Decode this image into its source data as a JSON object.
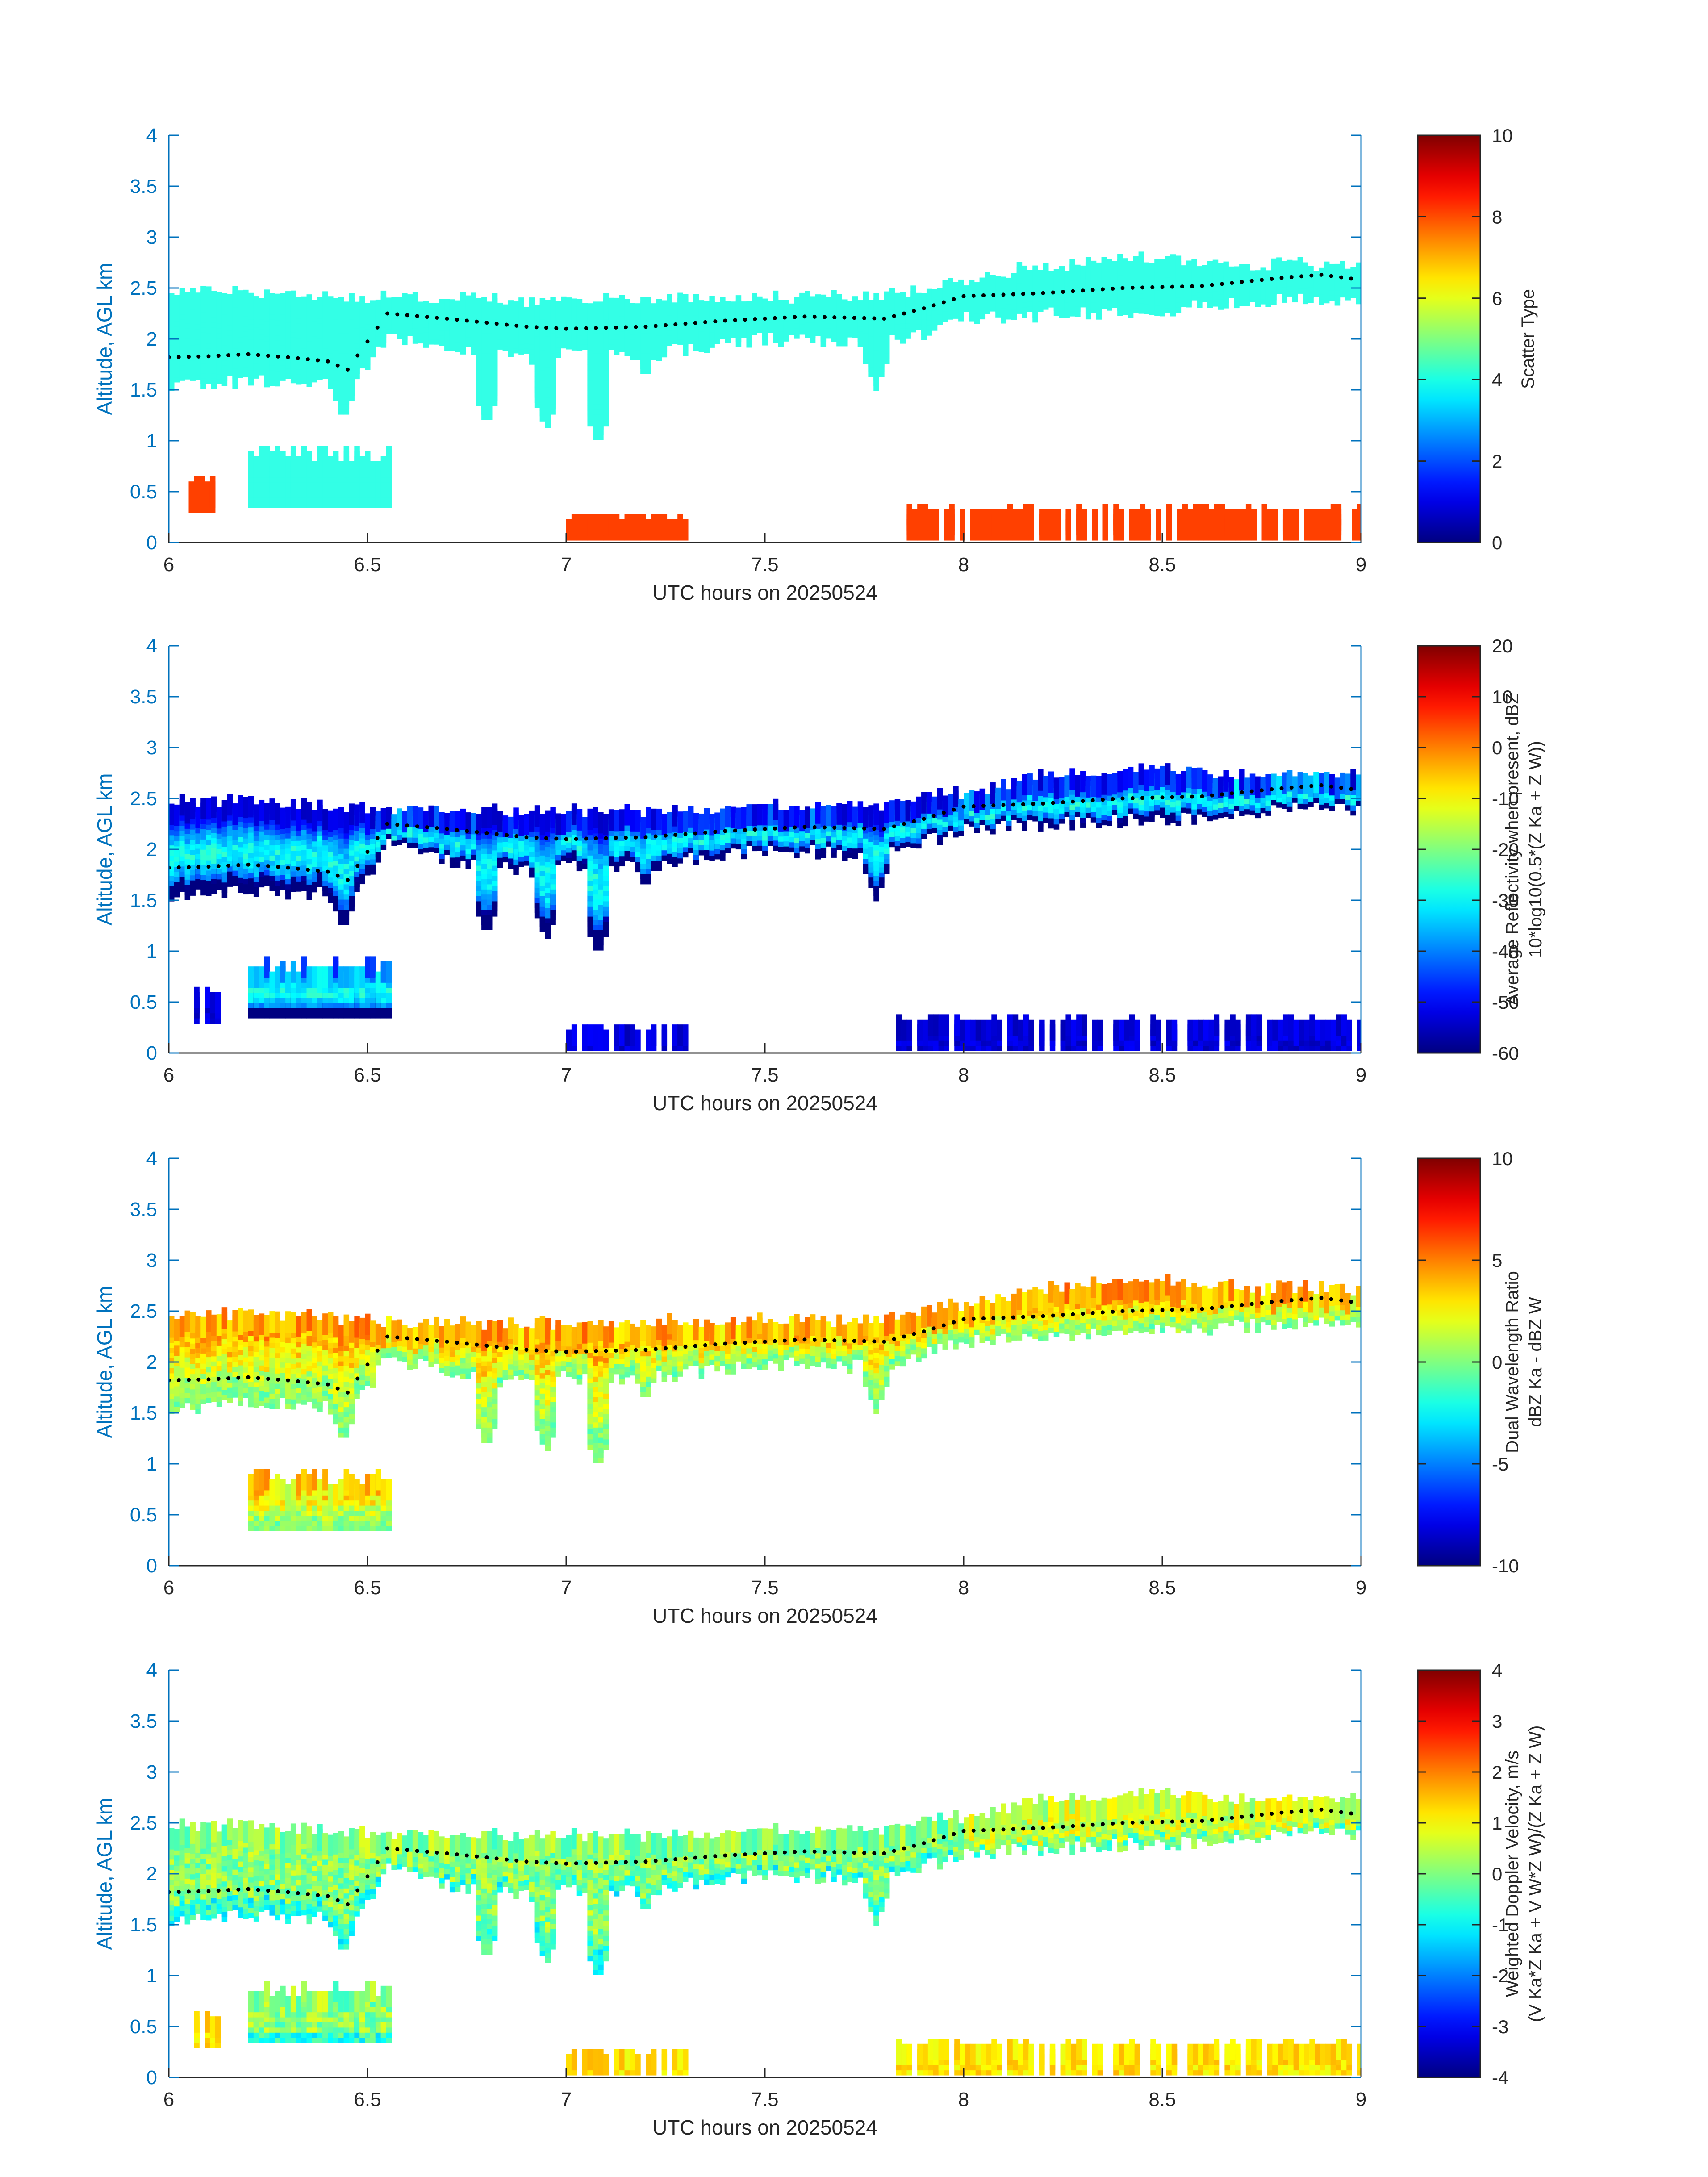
{
  "figure": {
    "background": "#ffffff",
    "axis_color": "#0072BD",
    "dot_color": "#000000"
  },
  "chart_data": [
    {
      "type": "heatmap",
      "panel": "scatter-type",
      "xlabel": "UTC hours on 20250524",
      "ylabel": "Altitude, AGL km",
      "xlim": [
        6,
        9
      ],
      "ylim": [
        0,
        4
      ],
      "xticks": [
        6,
        6.5,
        7,
        7.5,
        8,
        8.5,
        9
      ],
      "xtick_labels": [
        "6",
        "6.5",
        "7",
        "7.5",
        "8",
        "8.5",
        "9"
      ],
      "yticks": [
        0,
        0.5,
        1,
        1.5,
        2,
        2.5,
        3,
        3.5,
        4
      ],
      "ytick_labels": [
        "0",
        "0.5",
        "1",
        "1.5",
        "2",
        "2.5",
        "3",
        "3.5",
        "4"
      ],
      "colorbar": {
        "label_lines": [
          "Scatter Type"
        ],
        "range": [
          0,
          10
        ],
        "ticks": [
          0,
          2,
          4,
          6,
          8,
          10
        ],
        "tick_labels": [
          "0",
          "2",
          "4",
          "6",
          "8",
          "10"
        ],
        "colormap": "jet"
      },
      "cloud_color": "#33FFE6",
      "rain_color": "#FF4000",
      "cloud_layer": {
        "top_km": [
          [
            6.0,
            2.45
          ],
          [
            6.2,
            2.45
          ],
          [
            6.35,
            2.42
          ],
          [
            6.5,
            2.38
          ],
          [
            7.0,
            2.35
          ],
          [
            7.5,
            2.4
          ],
          [
            7.8,
            2.4
          ],
          [
            8.0,
            2.55
          ],
          [
            8.2,
            2.7
          ],
          [
            8.5,
            2.78
          ],
          [
            8.7,
            2.7
          ],
          [
            8.85,
            2.72
          ],
          [
            9.0,
            2.68
          ]
        ],
        "base_km": [
          [
            6.0,
            1.7
          ],
          [
            6.1,
            1.72
          ],
          [
            6.2,
            1.75
          ],
          [
            6.4,
            1.72
          ],
          [
            6.45,
            1.6
          ],
          [
            6.55,
            2.2
          ],
          [
            6.7,
            2.05
          ],
          [
            6.9,
            1.95
          ],
          [
            7.0,
            2.0
          ],
          [
            7.2,
            2.0
          ],
          [
            7.5,
            2.15
          ],
          [
            7.8,
            2.1
          ],
          [
            8.0,
            2.35
          ],
          [
            8.2,
            2.4
          ],
          [
            8.5,
            2.45
          ],
          [
            8.7,
            2.5
          ],
          [
            8.85,
            2.55
          ],
          [
            9.0,
            2.55
          ]
        ],
        "fallstreaks": [
          [
            6.44,
            1.35
          ],
          [
            6.8,
            1.3
          ],
          [
            6.95,
            1.25
          ],
          [
            7.08,
            1.1
          ],
          [
            7.2,
            1.75
          ],
          [
            7.78,
            1.65
          ]
        ]
      },
      "melting_layer_dots_km": [
        [
          6.0,
          1.82
        ],
        [
          6.1,
          1.83
        ],
        [
          6.2,
          1.85
        ],
        [
          6.3,
          1.82
        ],
        [
          6.4,
          1.78
        ],
        [
          6.45,
          1.7
        ],
        [
          6.55,
          2.25
        ],
        [
          6.7,
          2.2
        ],
        [
          6.9,
          2.12
        ],
        [
          7.0,
          2.1
        ],
        [
          7.2,
          2.12
        ],
        [
          7.4,
          2.18
        ],
        [
          7.6,
          2.22
        ],
        [
          7.8,
          2.2
        ],
        [
          7.9,
          2.3
        ],
        [
          8.0,
          2.42
        ],
        [
          8.2,
          2.45
        ],
        [
          8.4,
          2.5
        ],
        [
          8.6,
          2.52
        ],
        [
          8.8,
          2.6
        ],
        [
          8.9,
          2.63
        ],
        [
          9.0,
          2.58
        ]
      ],
      "low_features": [
        {
          "kind": "cloud",
          "x0": 6.2,
          "x1": 6.55,
          "y0": 0.5,
          "y1": 0.95
        },
        {
          "kind": "rain",
          "x0": 6.05,
          "x1": 6.13,
          "y0": 0.45,
          "y1": 0.65
        },
        {
          "kind": "rain",
          "x0": 7.83,
          "x1": 9.0,
          "y0": 0.18,
          "y1": 0.35
        },
        {
          "kind": "rain",
          "x0": 7.0,
          "x1": 7.3,
          "y0": 0.18,
          "y1": 0.25
        }
      ]
    },
    {
      "type": "heatmap",
      "panel": "reflectivity",
      "xlabel": "UTC hours on 20250524",
      "ylabel": "Altitude, AGL km",
      "xlim": [
        6,
        9
      ],
      "ylim": [
        0,
        4
      ],
      "xticks": [
        6,
        6.5,
        7,
        7.5,
        8,
        8.5,
        9
      ],
      "xtick_labels": [
        "6",
        "6.5",
        "7",
        "7.5",
        "8",
        "8.5",
        "9"
      ],
      "yticks": [
        0,
        0.5,
        1,
        1.5,
        2,
        2.5,
        3,
        3.5,
        4
      ],
      "ytick_labels": [
        "0",
        "0.5",
        "1",
        "1.5",
        "2",
        "2.5",
        "3",
        "3.5",
        "4"
      ],
      "colorbar": {
        "label_lines": [
          "Average Reflectivity when present, dBZ",
          "10*log10(0.5*(Z Ka + Z W))"
        ],
        "range": [
          -60,
          20
        ],
        "ticks": [
          -60,
          -50,
          -40,
          -30,
          -20,
          -10,
          0,
          10,
          20
        ],
        "tick_labels": [
          "-60",
          "-50",
          "-40",
          "-30",
          "-20",
          "-10",
          "0",
          "10",
          "20"
        ],
        "colormap": "jet"
      },
      "field_range_dbz": [
        -55,
        -25
      ],
      "melting_layer_dots_km": [
        [
          6.0,
          1.82
        ],
        [
          6.2,
          1.85
        ],
        [
          6.4,
          1.78
        ],
        [
          6.55,
          2.25
        ],
        [
          6.9,
          2.12
        ],
        [
          7.2,
          2.12
        ],
        [
          7.6,
          2.22
        ],
        [
          7.8,
          2.2
        ],
        [
          8.0,
          2.42
        ],
        [
          8.4,
          2.5
        ],
        [
          8.8,
          2.6
        ],
        [
          9.0,
          2.58
        ]
      ]
    },
    {
      "type": "heatmap",
      "panel": "dual-wavelength-ratio",
      "xlabel": "UTC hours on 20250524",
      "ylabel": "Altitude, AGL km",
      "xlim": [
        6,
        9
      ],
      "ylim": [
        0,
        4
      ],
      "xticks": [
        6,
        6.5,
        7,
        7.5,
        8,
        8.5,
        9
      ],
      "xtick_labels": [
        "6",
        "6.5",
        "7",
        "7.5",
        "8",
        "8.5",
        "9"
      ],
      "yticks": [
        0,
        0.5,
        1,
        1.5,
        2,
        2.5,
        3,
        3.5,
        4
      ],
      "ytick_labels": [
        "0",
        "0.5",
        "1",
        "1.5",
        "2",
        "2.5",
        "3",
        "3.5",
        "4"
      ],
      "colorbar": {
        "label_lines": [
          "Dual Wavelength Ratio",
          "dBZ Ka - dBZ W"
        ],
        "range": [
          -10,
          10
        ],
        "ticks": [
          -10,
          -5,
          0,
          5,
          10
        ],
        "tick_labels": [
          "-10",
          "-5",
          "0",
          "5",
          "10"
        ],
        "colormap": "jet"
      },
      "field_range_db": [
        -1,
        6
      ],
      "melting_layer_dots_km": [
        [
          6.0,
          1.82
        ],
        [
          6.2,
          1.85
        ],
        [
          6.4,
          1.78
        ],
        [
          6.55,
          2.25
        ],
        [
          6.9,
          2.12
        ],
        [
          7.2,
          2.12
        ],
        [
          7.6,
          2.22
        ],
        [
          7.8,
          2.2
        ],
        [
          8.0,
          2.42
        ],
        [
          8.4,
          2.5
        ],
        [
          8.8,
          2.6
        ],
        [
          9.0,
          2.58
        ]
      ]
    },
    {
      "type": "heatmap",
      "panel": "doppler-velocity",
      "xlabel": "UTC hours on 20250524",
      "ylabel": "Altitude, AGL km",
      "xlim": [
        6,
        9
      ],
      "ylim": [
        0,
        4
      ],
      "xticks": [
        6,
        6.5,
        7,
        7.5,
        8,
        8.5,
        9
      ],
      "xtick_labels": [
        "6",
        "6.5",
        "7",
        "7.5",
        "8",
        "8.5",
        "9"
      ],
      "yticks": [
        0,
        0.5,
        1,
        1.5,
        2,
        2.5,
        3,
        3.5,
        4
      ],
      "ytick_labels": [
        "0",
        "0.5",
        "1",
        "1.5",
        "2",
        "2.5",
        "3",
        "3.5",
        "4"
      ],
      "colorbar": {
        "label_lines": [
          "Weighted Doppler Velocity, m/s",
          "(V Ka*Z Ka + V W*Z W)/(Z Ka + Z W)"
        ],
        "range": [
          -4,
          4
        ],
        "ticks": [
          -4,
          -3,
          -2,
          -1,
          0,
          1,
          2,
          3,
          4
        ],
        "tick_labels": [
          "-4",
          "-3",
          "-2",
          "-1",
          "0",
          "1",
          "2",
          "3",
          "4"
        ],
        "colormap": "jet"
      },
      "field_range_ms": [
        -1.5,
        1.5
      ],
      "melting_layer_dots_km": [
        [
          6.0,
          1.82
        ],
        [
          6.2,
          1.85
        ],
        [
          6.4,
          1.78
        ],
        [
          6.55,
          2.25
        ],
        [
          6.9,
          2.12
        ],
        [
          7.2,
          2.12
        ],
        [
          7.6,
          2.22
        ],
        [
          7.8,
          2.2
        ],
        [
          8.0,
          2.42
        ],
        [
          8.4,
          2.5
        ],
        [
          8.8,
          2.6
        ],
        [
          9.0,
          2.58
        ]
      ]
    }
  ]
}
